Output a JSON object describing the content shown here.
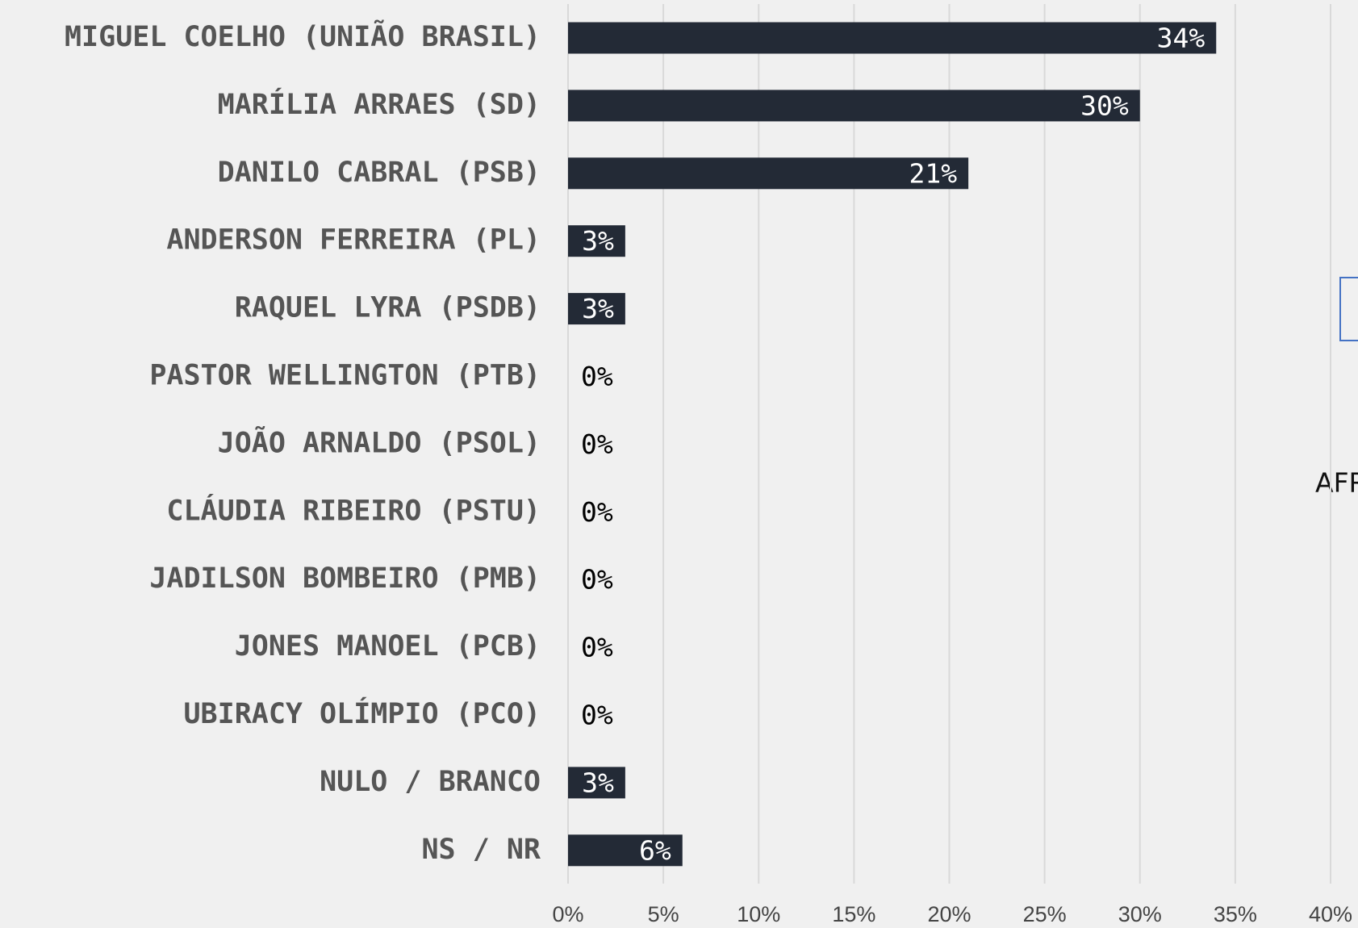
{
  "chart_data": {
    "type": "bar",
    "orientation": "horizontal",
    "categories": [
      "MIGUEL COELHO (UNIÃO BRASIL)",
      "MARÍLIA ARRAES (SD)",
      "DANILO CABRAL (PSB)",
      "ANDERSON FERREIRA (PL)",
      "RAQUEL LYRA (PSDB)",
      "PASTOR WELLINGTON (PTB)",
      "JOÃO ARNALDO (PSOL)",
      "CLÁUDIA RIBEIRO (PSTU)",
      "JADILSON BOMBEIRO (PMB)",
      "JONES MANOEL (PCB)",
      "UBIRACY OLÍMPIO (PCO)",
      "NULO / BRANCO",
      "NS / NR"
    ],
    "values": [
      34,
      30,
      21,
      3,
      3,
      0,
      0,
      0,
      0,
      0,
      0,
      3,
      6
    ],
    "value_labels": [
      "34%",
      "30%",
      "21%",
      "3%",
      "3%",
      "0%",
      "0%",
      "0%",
      "0%",
      "0%",
      "0%",
      "3%",
      "6%"
    ],
    "color": "#232a36",
    "xlim": [
      0,
      40
    ],
    "xticks": [
      {
        "value": 0,
        "label": "0%"
      },
      {
        "value": 5,
        "label": "5%"
      },
      {
        "value": 10,
        "label": "10%"
      },
      {
        "value": 15,
        "label": "15%"
      },
      {
        "value": 20,
        "label": "20%"
      },
      {
        "value": 25,
        "label": "25%"
      },
      {
        "value": 30,
        "label": "30%"
      },
      {
        "value": 35,
        "label": "35%"
      },
      {
        "value": 40,
        "label": "40%"
      }
    ],
    "grid": true,
    "annotation": "AFR"
  }
}
